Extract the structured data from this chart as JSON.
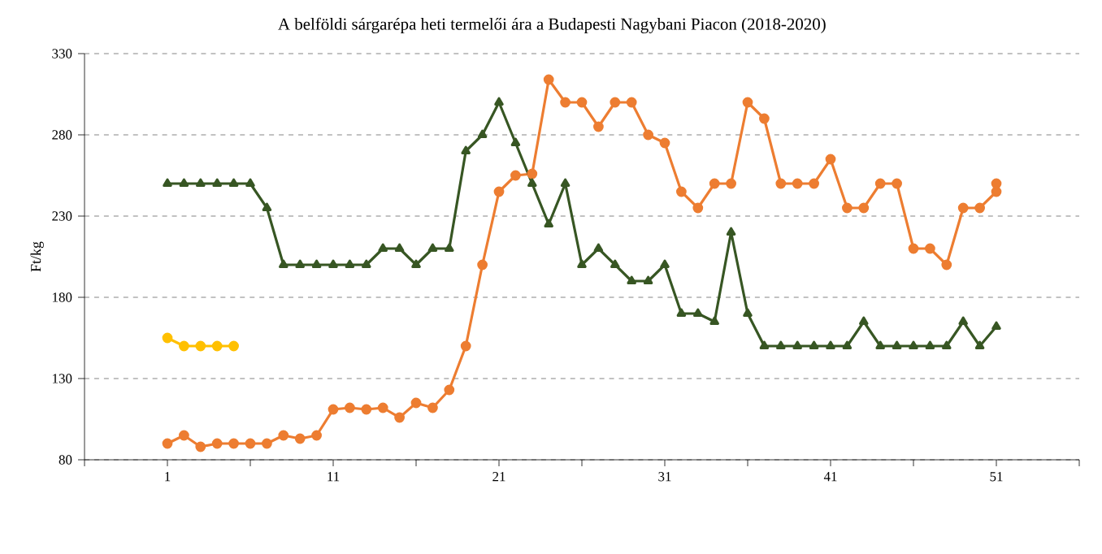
{
  "chart_data": {
    "type": "line",
    "title": "A belföldi sárgarépa heti termelői ára a Budapesti Nagybani Piacon (2018-2020)",
    "ylabel": "Ft/kg",
    "xlim": [
      -4,
      56
    ],
    "xticks": [
      {
        "value": -4,
        "label": null
      },
      1,
      {
        "value": 6,
        "label": null
      },
      11,
      {
        "value": 16,
        "label": null
      },
      21,
      {
        "value": 26,
        "label": null
      },
      31,
      {
        "value": 36,
        "label": null
      },
      41,
      {
        "value": 46,
        "label": null
      },
      51,
      {
        "value": 56,
        "label": null
      }
    ],
    "ylim": [
      80,
      330
    ],
    "yticks": [
      80,
      130,
      180,
      230,
      280,
      330
    ],
    "grid": "y",
    "line_style": "solid",
    "series": [
      {
        "color": "#ed7d31",
        "marker": "circle",
        "x": [
          1,
          2,
          3,
          4,
          5,
          6,
          7,
          8,
          9,
          10,
          11,
          12,
          13,
          14,
          15,
          16,
          17,
          18,
          19,
          20,
          21,
          22,
          23,
          24,
          25,
          26,
          27,
          28,
          29,
          30,
          31,
          32,
          33,
          34,
          35,
          36,
          37,
          38,
          39,
          40,
          41,
          42,
          43,
          44,
          45,
          46,
          47,
          48,
          49,
          50,
          51,
          51
        ],
        "values": [
          90,
          95,
          88,
          90,
          90,
          90,
          90,
          95,
          93,
          95,
          111,
          112,
          111,
          112,
          106,
          115,
          112,
          123,
          150,
          200,
          245,
          255,
          256,
          314,
          300,
          300,
          285,
          300,
          300,
          280,
          275,
          245,
          235,
          250,
          250,
          300,
          290,
          250,
          250,
          250,
          265,
          235,
          235,
          250,
          250,
          210,
          210,
          200,
          235,
          235,
          245,
          250
        ]
      },
      {
        "color": "#375623",
        "marker": "triangle",
        "x": [
          1,
          2,
          3,
          4,
          5,
          6,
          7,
          8,
          9,
          10,
          11,
          12,
          13,
          14,
          15,
          16,
          17,
          18,
          19,
          20,
          21,
          22,
          23,
          24,
          25,
          26,
          27,
          28,
          29,
          30,
          31,
          32,
          33,
          34,
          35,
          36,
          37,
          38,
          39,
          40,
          41,
          42,
          43,
          44,
          45,
          46,
          47,
          48,
          49,
          50,
          51
        ],
        "values": [
          250,
          250,
          250,
          250,
          250,
          250,
          235,
          200,
          200,
          200,
          200,
          200,
          200,
          210,
          210,
          200,
          210,
          210,
          270,
          280,
          300,
          275,
          250,
          225,
          250,
          200,
          210,
          200,
          190,
          190,
          200,
          170,
          170,
          165,
          220,
          170,
          150,
          150,
          150,
          150,
          150,
          150,
          165,
          150,
          150,
          150,
          150,
          150,
          165,
          150,
          162
        ]
      },
      {
        "color": "#ffc000",
        "marker": "circle",
        "x": [
          1,
          2,
          3,
          4,
          5
        ],
        "values": [
          155,
          150,
          150,
          150,
          150
        ]
      }
    ]
  }
}
